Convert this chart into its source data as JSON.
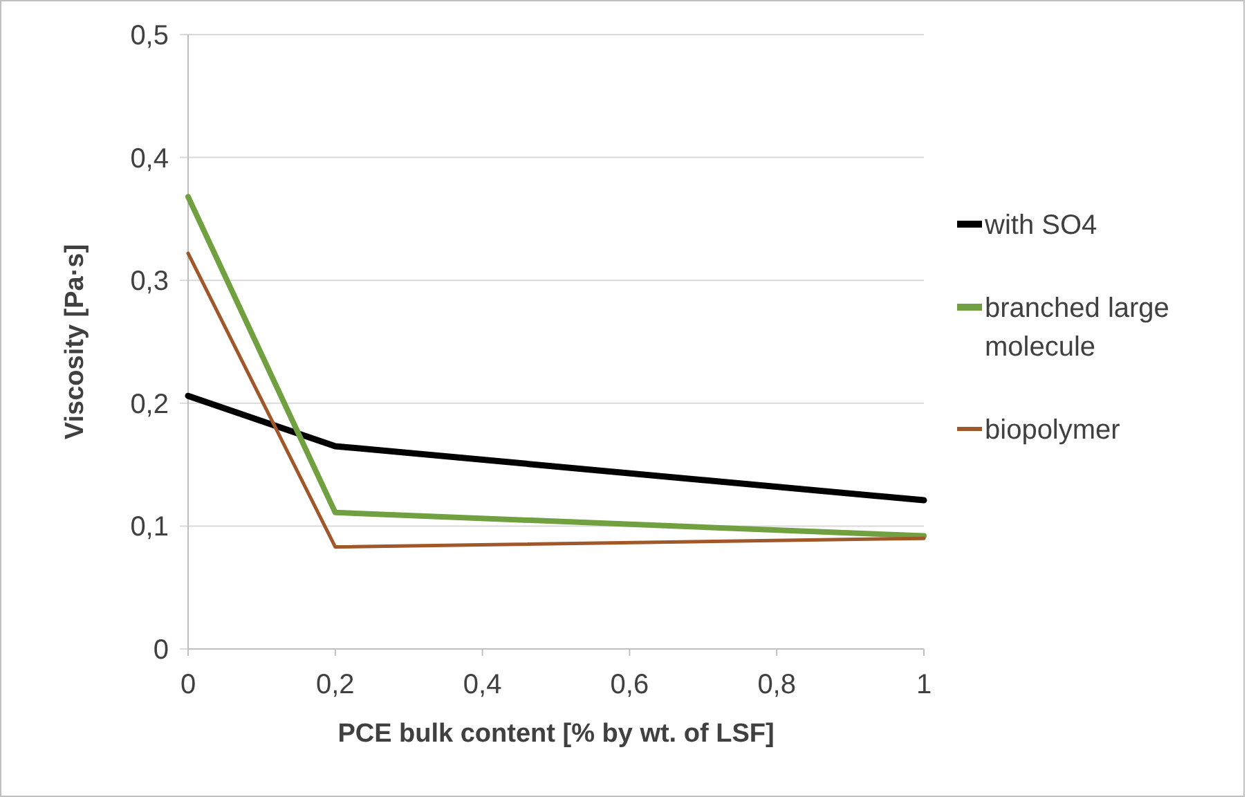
{
  "chart_data": {
    "type": "line",
    "xlabel": "PCE bulk content [% by wt. of LSF]",
    "ylabel": "Viscosity [Pa·s]",
    "x": [
      0,
      0.2,
      1
    ],
    "series": [
      {
        "name": "with SO4",
        "color": "#000000",
        "values": [
          0.206,
          0.165,
          0.121
        ]
      },
      {
        "name": "branched large molecule",
        "color": "#70a040",
        "values": [
          0.368,
          0.111,
          0.092
        ]
      },
      {
        "name": "biopolymer",
        "color": "#a0582a",
        "values": [
          0.322,
          0.083,
          0.09
        ]
      }
    ],
    "xlim": [
      0,
      1
    ],
    "xticks": [
      {
        "value": 0,
        "label": "0"
      },
      {
        "value": 0.2,
        "label": "0,2"
      },
      {
        "value": 0.4,
        "label": "0,4"
      },
      {
        "value": 0.6,
        "label": "0,6"
      },
      {
        "value": 0.8,
        "label": "0,8"
      },
      {
        "value": 1,
        "label": "1"
      }
    ],
    "ylim": [
      0,
      0.5
    ],
    "yticks": [
      {
        "value": 0,
        "label": "0"
      },
      {
        "value": 0.1,
        "label": "0,1"
      },
      {
        "value": 0.2,
        "label": "0,2"
      },
      {
        "value": 0.3,
        "label": "0,3"
      },
      {
        "value": 0.4,
        "label": "0,4"
      },
      {
        "value": 0.5,
        "label": "0,5"
      }
    ],
    "grid": "y",
    "legend": "right",
    "marker": "none",
    "line_style": "solid"
  }
}
